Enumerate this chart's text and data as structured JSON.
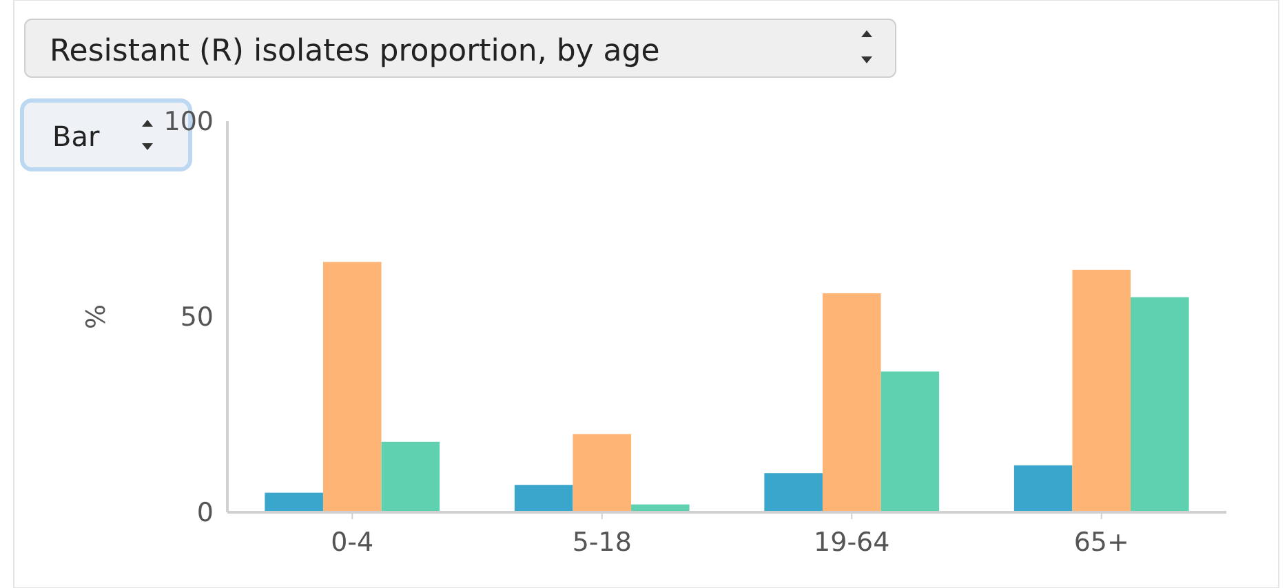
{
  "chart_data": {
    "type": "bar",
    "title": "Resistant (R) isolates proportion, by age",
    "annotations": [
      "Bar"
    ],
    "ylabel": "%",
    "categories": [
      "0-4",
      "5-18",
      "19-64",
      "65+"
    ],
    "series": [
      {
        "color": "#3aa6cc",
        "values": [
          5,
          7,
          10,
          12
        ]
      },
      {
        "color": "#fdb474",
        "values": [
          64,
          20,
          56,
          62
        ]
      },
      {
        "color": "#5fd1b0",
        "values": [
          18,
          2,
          36,
          55
        ]
      }
    ],
    "ylim": [
      0,
      100
    ],
    "yticks": [
      0,
      50,
      100
    ],
    "grid": false
  }
}
